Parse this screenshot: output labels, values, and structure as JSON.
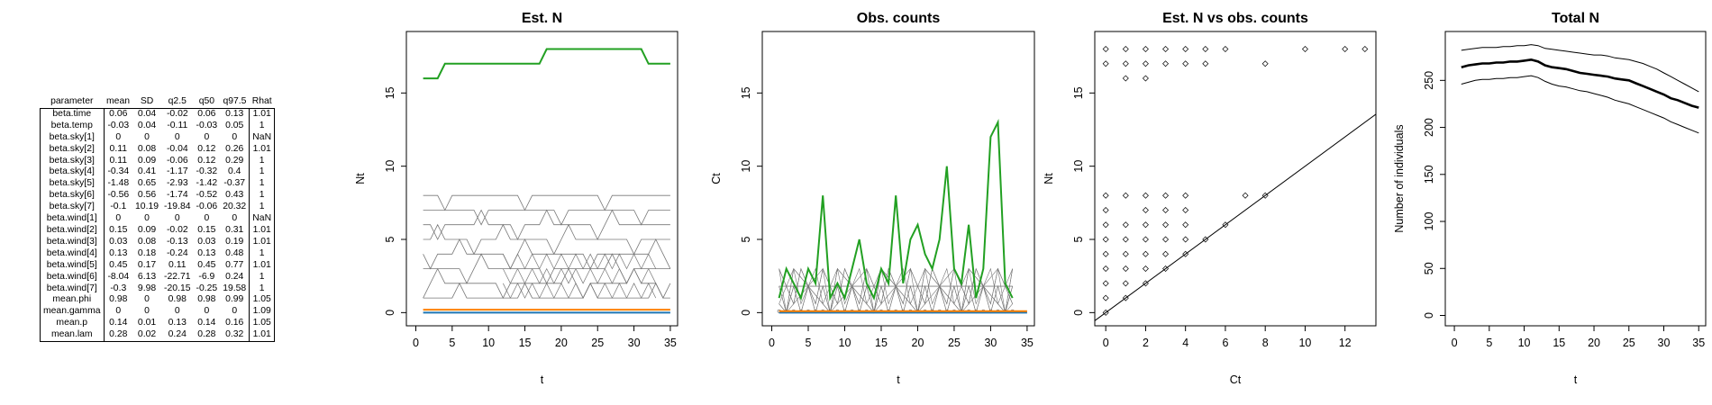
{
  "table": {
    "columns": [
      "parameter",
      "mean",
      "SD",
      "q2.5",
      "q50",
      "q97.5",
      "Rhat"
    ],
    "rows": [
      [
        "beta.time",
        "0.06",
        "0.04",
        "-0.02",
        "0.06",
        "0.13",
        "1.01"
      ],
      [
        "beta.temp",
        "-0.03",
        "0.04",
        "-0.11",
        "-0.03",
        "0.05",
        "1"
      ],
      [
        "beta.sky[1]",
        "0",
        "0",
        "0",
        "0",
        "0",
        "NaN"
      ],
      [
        "beta.sky[2]",
        "0.11",
        "0.08",
        "-0.04",
        "0.12",
        "0.26",
        "1.01"
      ],
      [
        "beta.sky[3]",
        "0.11",
        "0.09",
        "-0.06",
        "0.12",
        "0.29",
        "1"
      ],
      [
        "beta.sky[4]",
        "-0.34",
        "0.41",
        "-1.17",
        "-0.32",
        "0.4",
        "1"
      ],
      [
        "beta.sky[5]",
        "-1.48",
        "0.65",
        "-2.93",
        "-1.42",
        "-0.37",
        "1"
      ],
      [
        "beta.sky[6]",
        "-0.56",
        "0.56",
        "-1.74",
        "-0.52",
        "0.43",
        "1"
      ],
      [
        "beta.sky[7]",
        "-0.1",
        "10.19",
        "-19.84",
        "-0.06",
        "20.32",
        "1"
      ],
      [
        "beta.wind[1]",
        "0",
        "0",
        "0",
        "0",
        "0",
        "NaN"
      ],
      [
        "beta.wind[2]",
        "0.15",
        "0.09",
        "-0.02",
        "0.15",
        "0.31",
        "1.01"
      ],
      [
        "beta.wind[3]",
        "0.03",
        "0.08",
        "-0.13",
        "0.03",
        "0.19",
        "1.01"
      ],
      [
        "beta.wind[4]",
        "0.13",
        "0.18",
        "-0.24",
        "0.13",
        "0.48",
        "1"
      ],
      [
        "beta.wind[5]",
        "0.45",
        "0.17",
        "0.11",
        "0.45",
        "0.77",
        "1.01"
      ],
      [
        "beta.wind[6]",
        "-8.04",
        "6.13",
        "-22.71",
        "-6.9",
        "0.24",
        "1"
      ],
      [
        "beta.wind[7]",
        "-0.3",
        "9.98",
        "-20.15",
        "-0.25",
        "19.58",
        "1"
      ],
      [
        "mean.phi",
        "0.98",
        "0",
        "0.98",
        "0.98",
        "0.99",
        "1.05"
      ],
      [
        "mean.gamma",
        "0",
        "0",
        "0",
        "0",
        "0",
        "1.09"
      ],
      [
        "mean.p",
        "0.14",
        "0.01",
        "0.13",
        "0.14",
        "0.16",
        "1.05"
      ],
      [
        "mean.lam",
        "0.28",
        "0.02",
        "0.24",
        "0.28",
        "0.32",
        "1.01"
      ]
    ]
  },
  "chart_data": [
    {
      "type": "line",
      "title": "Est. N",
      "xlabel": "t",
      "ylabel": "Nt",
      "xlim": [
        0,
        35
      ],
      "ylim": [
        0,
        18
      ],
      "xticks": [
        0,
        5,
        10,
        15,
        20,
        25,
        30,
        35
      ],
      "yticks": [
        0,
        5,
        10,
        15
      ],
      "colors": {
        "highlight": "#22a022",
        "grey": "#777777",
        "orange": "#ff8000",
        "blue": "#1f77b4"
      },
      "highlight_series": {
        "x": [
          1,
          2,
          3,
          4,
          5,
          6,
          7,
          8,
          9,
          10,
          11,
          12,
          13,
          14,
          15,
          16,
          17,
          18,
          19,
          20,
          21,
          22,
          23,
          24,
          25,
          26,
          27,
          28,
          29,
          30,
          31,
          32,
          33,
          34,
          35
        ],
        "y": [
          16,
          16,
          16,
          17,
          17,
          17,
          17,
          17,
          17,
          17,
          17,
          17,
          17,
          17,
          17,
          17,
          17,
          18,
          18,
          18,
          18,
          18,
          18,
          18,
          18,
          18,
          18,
          18,
          18,
          18,
          18,
          17,
          17,
          17,
          17
        ]
      },
      "grey_levels": [
        0,
        1,
        2,
        3,
        4,
        5,
        6,
        7,
        8
      ],
      "bottom_series": {
        "orange_y": 0.2,
        "blue_y": 0
      }
    },
    {
      "type": "line",
      "title": "Obs. counts",
      "xlabel": "t",
      "ylabel": "Ct",
      "xlim": [
        0,
        35
      ],
      "ylim": [
        0,
        18
      ],
      "xticks": [
        0,
        5,
        10,
        15,
        20,
        25,
        30,
        35
      ],
      "yticks": [
        0,
        5,
        10,
        15
      ],
      "colors": {
        "highlight": "#22a022",
        "grey": "#777777",
        "orange": "#ff8000",
        "blue": "#1f77b4"
      },
      "highlight_series": {
        "x": [
          1,
          2,
          3,
          4,
          5,
          6,
          7,
          8,
          9,
          10,
          11,
          12,
          13,
          14,
          15,
          16,
          17,
          18,
          19,
          20,
          21,
          22,
          23,
          24,
          25,
          26,
          27,
          28,
          29,
          30,
          31,
          32,
          33
        ],
        "y": [
          1,
          3,
          2,
          1,
          3,
          2,
          8,
          1,
          2,
          1,
          3,
          5,
          2,
          1,
          3,
          2,
          8,
          2,
          5,
          6,
          4,
          3,
          5,
          10,
          3,
          2,
          6,
          1,
          3,
          12,
          13,
          2,
          1
        ]
      }
    },
    {
      "type": "scatter",
      "title": "Est. N vs obs. counts",
      "xlabel": "Ct",
      "ylabel": "Nt",
      "xlim": [
        0,
        13
      ],
      "ylim": [
        0,
        18
      ],
      "xticks": [
        0,
        2,
        4,
        6,
        8,
        10,
        12
      ],
      "yticks": [
        0,
        5,
        10,
        15
      ],
      "points": [
        [
          0,
          0
        ],
        [
          0,
          1
        ],
        [
          0,
          2
        ],
        [
          0,
          3
        ],
        [
          0,
          4
        ],
        [
          0,
          5
        ],
        [
          0,
          6
        ],
        [
          0,
          7
        ],
        [
          0,
          8
        ],
        [
          0,
          17
        ],
        [
          0,
          18
        ],
        [
          1,
          1
        ],
        [
          1,
          2
        ],
        [
          1,
          3
        ],
        [
          1,
          4
        ],
        [
          1,
          5
        ],
        [
          1,
          6
        ],
        [
          1,
          8
        ],
        [
          1,
          16
        ],
        [
          1,
          17
        ],
        [
          1,
          18
        ],
        [
          2,
          2
        ],
        [
          2,
          3
        ],
        [
          2,
          4
        ],
        [
          2,
          5
        ],
        [
          2,
          6
        ],
        [
          2,
          7
        ],
        [
          2,
          8
        ],
        [
          2,
          16
        ],
        [
          2,
          17
        ],
        [
          2,
          18
        ],
        [
          3,
          3
        ],
        [
          3,
          4
        ],
        [
          3,
          5
        ],
        [
          3,
          6
        ],
        [
          3,
          7
        ],
        [
          3,
          8
        ],
        [
          3,
          17
        ],
        [
          3,
          18
        ],
        [
          4,
          4
        ],
        [
          4,
          5
        ],
        [
          4,
          6
        ],
        [
          4,
          7
        ],
        [
          4,
          8
        ],
        [
          4,
          17
        ],
        [
          4,
          18
        ],
        [
          5,
          5
        ],
        [
          5,
          17
        ],
        [
          5,
          18
        ],
        [
          6,
          6
        ],
        [
          6,
          18
        ],
        [
          7,
          8
        ],
        [
          8,
          8
        ],
        [
          8,
          17
        ],
        [
          10,
          18
        ],
        [
          12,
          18
        ],
        [
          13,
          18
        ]
      ],
      "reference_line": "y = x"
    },
    {
      "type": "line",
      "title": "Total N",
      "xlabel": "t",
      "ylabel": "Number of individuals",
      "xlim": [
        0,
        35
      ],
      "ylim": [
        0,
        290
      ],
      "xticks": [
        0,
        5,
        10,
        15,
        20,
        25,
        30,
        35
      ],
      "yticks": [
        0,
        50,
        100,
        150,
        200,
        250
      ],
      "series": [
        {
          "values": [
            282,
            283,
            284,
            285,
            285,
            285,
            286,
            286,
            287,
            287,
            288,
            287,
            284,
            283,
            282,
            281,
            280,
            279,
            278,
            277,
            277,
            276,
            274,
            273,
            272,
            270,
            268,
            265,
            262,
            258,
            254,
            250,
            246,
            242,
            238
          ]
        },
        {
          "values": [
            264,
            266,
            267,
            268,
            268,
            269,
            269,
            270,
            270,
            271,
            272,
            270,
            266,
            264,
            263,
            262,
            260,
            258,
            257,
            256,
            255,
            254,
            252,
            251,
            250,
            247,
            244,
            241,
            238,
            235,
            231,
            229,
            226,
            223,
            221
          ]
        },
        {
          "values": [
            246,
            248,
            250,
            251,
            251,
            252,
            252,
            253,
            253,
            254,
            255,
            253,
            249,
            246,
            244,
            243,
            241,
            239,
            238,
            236,
            234,
            232,
            229,
            227,
            225,
            222,
            219,
            216,
            213,
            210,
            206,
            203,
            200,
            197,
            194
          ]
        }
      ]
    }
  ]
}
